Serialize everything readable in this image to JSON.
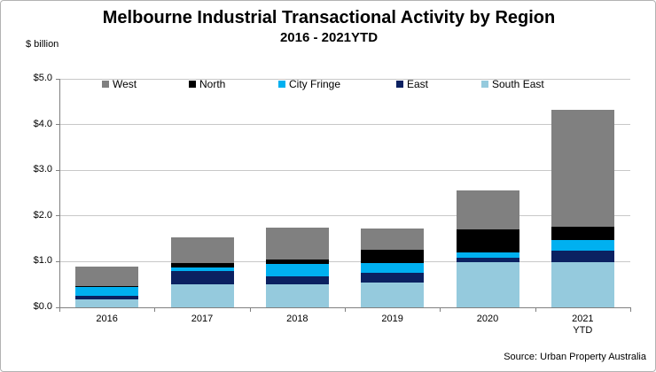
{
  "header": {
    "title": "Melbourne Industrial Transactional Activity by Region",
    "subtitle": "2016 - 2021YTD"
  },
  "source": "Source: Urban Property Australia",
  "chart_data": {
    "type": "bar",
    "stacked": true,
    "title": "Melbourne Industrial Transactional Activity by Region",
    "subtitle": "2016 - 2021YTD",
    "ylabel": "$ billion",
    "xlabel": "",
    "ylim": [
      0,
      5
    ],
    "ytick_values": [
      0,
      1,
      2,
      3,
      4,
      5
    ],
    "ytick_labels": [
      "$0.0",
      "$1.0",
      "$2.0",
      "$3.0",
      "$4.0",
      "$5.0"
    ],
    "grid": true,
    "legend_position": "top-inside",
    "categories": [
      "2016",
      "2017",
      "2018",
      "2019",
      "2020",
      "2021\nYTD"
    ],
    "series": [
      {
        "name": "South East",
        "color": "#95CADD",
        "values": [
          0.17,
          0.5,
          0.5,
          0.54,
          0.99,
          0.98
        ]
      },
      {
        "name": "East",
        "color": "#0B2161",
        "values": [
          0.08,
          0.29,
          0.18,
          0.21,
          0.1,
          0.26
        ]
      },
      {
        "name": "City Fringe",
        "color": "#00B0F0",
        "values": [
          0.2,
          0.08,
          0.26,
          0.21,
          0.12,
          0.23
        ]
      },
      {
        "name": "North",
        "color": "#000000",
        "values": [
          0.02,
          0.09,
          0.11,
          0.3,
          0.5,
          0.29
        ]
      },
      {
        "name": "West",
        "color": "#808080",
        "values": [
          0.42,
          0.57,
          0.7,
          0.47,
          0.85,
          2.56
        ]
      }
    ],
    "legend_order": [
      "West",
      "North",
      "City Fringe",
      "East",
      "South East"
    ],
    "totals": [
      0.89,
      1.53,
      1.75,
      1.73,
      2.56,
      4.32
    ]
  }
}
